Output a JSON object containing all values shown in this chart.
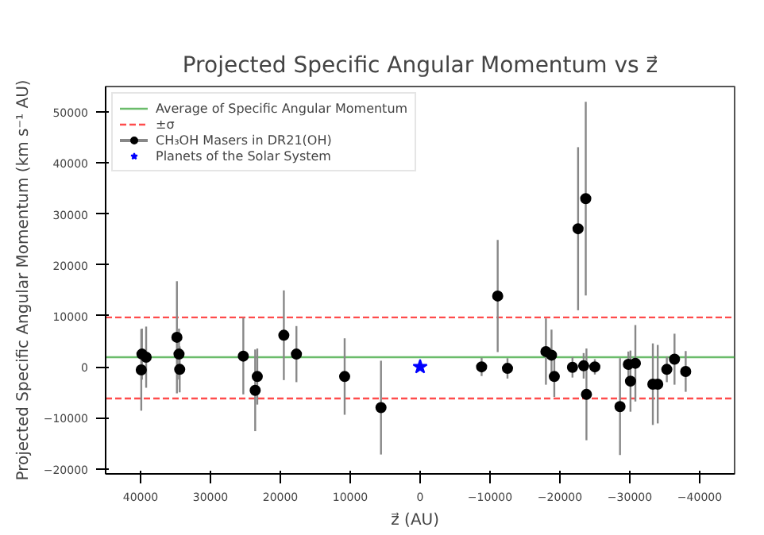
{
  "chart_data": {
    "type": "scatter",
    "title": "Projected Specific Angular Momentum vs z⃗",
    "xlabel": "z⃗   (AU)",
    "ylabel": "Projected Specific Angular Momentum (km s⁻¹ AU)",
    "xlim": [
      45000,
      -45000
    ],
    "xticks": [
      40000,
      30000,
      20000,
      10000,
      0,
      -10000,
      -20000,
      -30000,
      -40000
    ],
    "ylim": [
      -21000,
      55000
    ],
    "yticks": [
      -20000,
      -10000,
      0,
      10000,
      20000,
      30000,
      40000,
      50000
    ],
    "grid": false,
    "legend": "top left",
    "ref_lines": [
      {
        "axis": "y",
        "value": 1900,
        "label": "Average of Specific Angular Momentum",
        "color": "#2ca02c",
        "line_style": "solid"
      },
      {
        "axis": "y",
        "value": 9700,
        "label": "±σ",
        "color": "#ff0000",
        "line_style": "dashed"
      },
      {
        "axis": "y",
        "value": -6200,
        "color": "#ff0000",
        "line_style": "dashed"
      }
    ],
    "series": [
      {
        "name": "CH₃OH Masers in DR21(OH)",
        "color": "#000000",
        "marker": "circle",
        "x": [
          39900,
          39800,
          39200,
          34800,
          34500,
          34400,
          25300,
          23600,
          23300,
          19500,
          17700,
          10800,
          5600,
          -8800,
          -11100,
          -12500,
          -18000,
          -18800,
          -19200,
          -21800,
          -22600,
          -23400,
          -23700,
          -23800,
          -25000,
          -28600,
          -29800,
          -30100,
          -30800,
          -33300,
          -34000,
          -35300,
          -36400,
          -38000
        ],
        "values": [
          -600,
          2500,
          1900,
          5800,
          2500,
          -500,
          2100,
          -4600,
          -1900,
          6200,
          2500,
          -1900,
          -8000,
          0,
          13900,
          -300,
          3000,
          2300,
          -1900,
          -100,
          27100,
          200,
          33000,
          -5400,
          0,
          -7800,
          500,
          -2800,
          700,
          -3400,
          -3400,
          -500,
          1500,
          -900
        ],
        "errors": [
          8000,
          5000,
          6000,
          11000,
          5000,
          4500,
          7500,
          8000,
          5500,
          8800,
          5500,
          7500,
          9200,
          1800,
          11000,
          2000,
          6500,
          5000,
          4000,
          2000,
          16000,
          2500,
          19000,
          9000,
          1500,
          9500,
          2500,
          6000,
          7500,
          8000,
          7700,
          2500,
          5000,
          4000
        ]
      },
      {
        "name": "Planets of the Solar System",
        "color": "#0000ff",
        "marker": "star",
        "x": [
          0
        ],
        "values": [
          0
        ]
      }
    ]
  }
}
